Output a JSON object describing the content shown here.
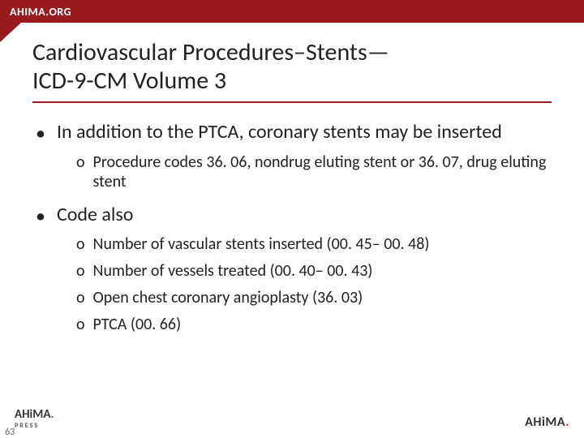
{
  "header": {
    "site": "AHIMA.ORG"
  },
  "title": {
    "line1": "Cardiovascular Procedures–Stents—",
    "line2": "ICD-9-CM Volume 3"
  },
  "bullets": [
    {
      "text": "In addition to the PTCA, coronary stents may be inserted",
      "children": [
        {
          "text": "Procedure codes 36. 06, nondrug eluting stent or 36. 07, drug eluting stent"
        }
      ]
    },
    {
      "text": "Code also",
      "children": [
        {
          "text": "Number of vascular stents inserted (00. 45– 00. 48)"
        },
        {
          "text": "Number of vessels treated (00. 40– 00. 43)"
        },
        {
          "text": "Open chest coronary angioplasty (36. 03)"
        },
        {
          "text": "PTCA (00. 66)"
        }
      ]
    }
  ],
  "footer": {
    "press_brand": "AHiMA",
    "press_sub": "PRESS",
    "right_brand": "AHiMA",
    "page": "63"
  },
  "colors": {
    "brand_red": "#9a1b1e",
    "accent_orange": "#d43a00",
    "text": "#222222"
  }
}
